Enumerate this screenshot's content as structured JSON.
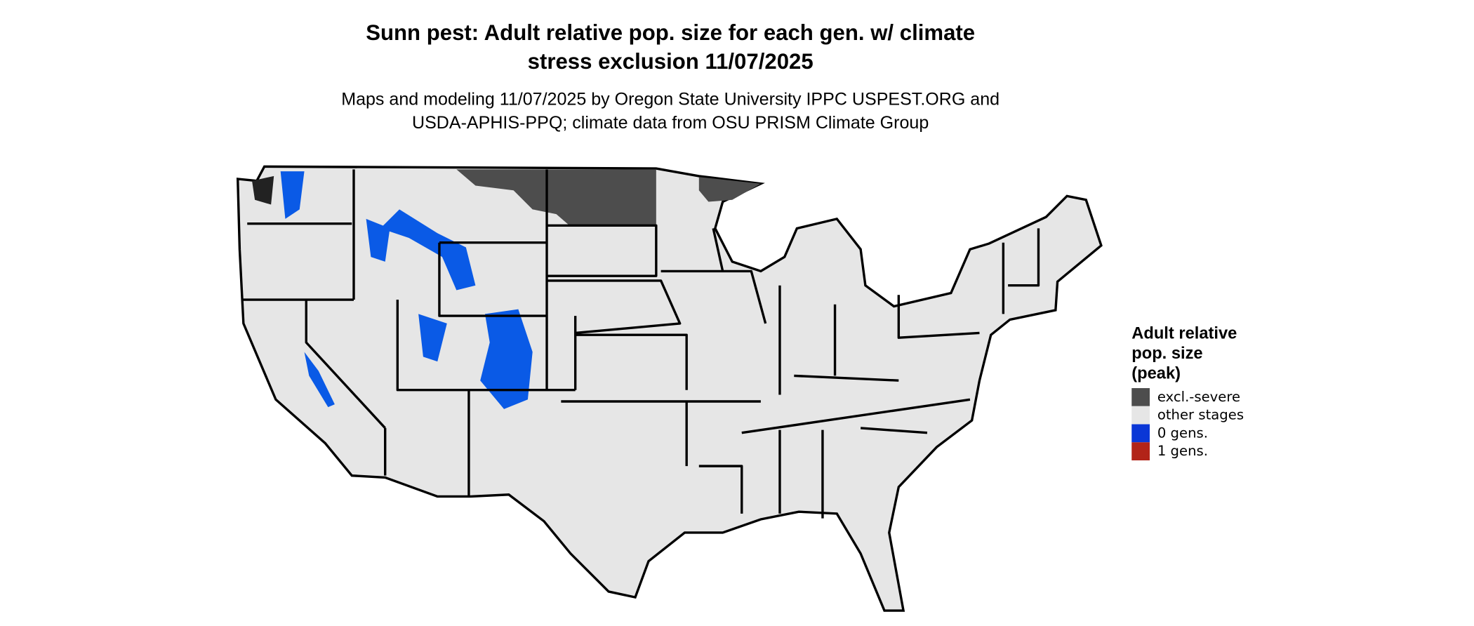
{
  "header": {
    "title": [
      "Sunn pest: Adult relative pop. size for each gen. w/ climate",
      "stress exclusion 11/07/2025"
    ],
    "subtitle": [
      "Maps and modeling 11/07/2025 by Oregon State University IPPC USPEST.ORG and",
      "USDA-APHIS-PPQ; climate data from OSU PRISM Climate Group"
    ]
  },
  "legend": {
    "title": [
      "Adult relative",
      "pop. size",
      "(peak)"
    ],
    "items": [
      {
        "label": "excl.-severe",
        "color": "#4d4d4d"
      },
      {
        "label": "other stages",
        "color": "#e6e6e6"
      },
      {
        "label": "0 gens.",
        "color": "#0a37d6"
      },
      {
        "label": "1 gens.",
        "color": "#b22418"
      }
    ]
  }
}
